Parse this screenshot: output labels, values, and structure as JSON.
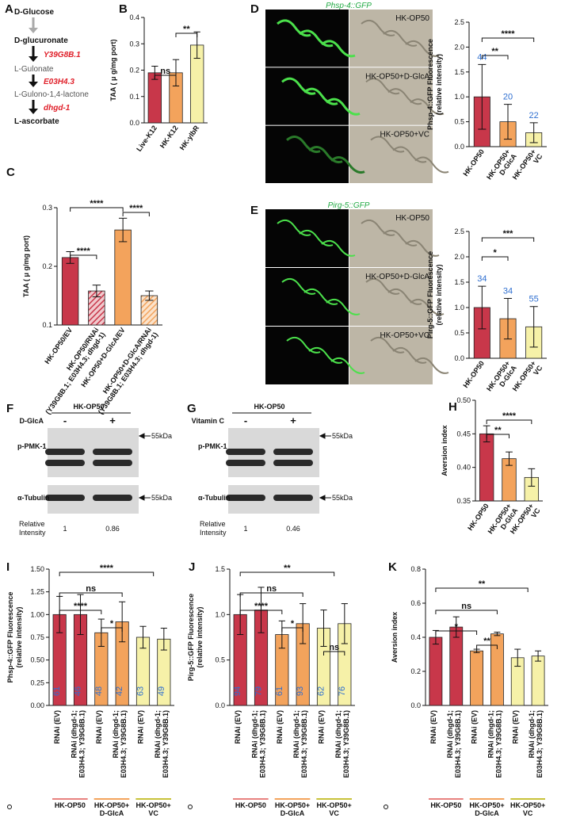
{
  "pathway": {
    "panel": "A",
    "compounds": [
      "D-Glucose",
      "D-glucuronate",
      "L-Gulonate",
      "L-Gulono-1,4-lactone",
      "L-ascorbate"
    ],
    "enzymes": [
      "Y39G8B.1",
      "E03H4.3",
      "dhgd-1"
    ]
  },
  "micrographs": [
    {
      "panel": "D",
      "title": "Phsp-4::GFP",
      "rows": [
        "HK-OP50",
        "HK-OP50+D-GlcA",
        "HK-OP50+VC"
      ]
    },
    {
      "panel": "E",
      "title": "Pirg-5::GFP",
      "rows": [
        "HK-OP50",
        "HK-OP50+D-GlcA",
        "HK-OP50+VC"
      ]
    }
  ],
  "blots": [
    {
      "panel": "F",
      "header": "HK-OP50",
      "treatment": "D-GlcA",
      "lanes": [
        "-",
        "+"
      ],
      "bands": [
        "p-PMK-1",
        "α-Tubulin"
      ],
      "marker": "55kDa",
      "intensity_label": [
        "Relative",
        "Intensity"
      ],
      "intensities": [
        1,
        0.86
      ]
    },
    {
      "panel": "G",
      "header": "HK-OP50",
      "treatment": "Vitamin C",
      "lanes": [
        "-",
        "+"
      ],
      "bands": [
        "p-PMK-1",
        "α-Tubulin"
      ],
      "marker": "55kDa",
      "intensity_label": [
        "Relative",
        "Intensity"
      ],
      "intensities": [
        1,
        0.46
      ]
    }
  ],
  "chart_data": [
    {
      "type": "bar",
      "panel": "B",
      "ylabel": [
        "TAA ( μ g/mg port)"
      ],
      "categories": [
        "Live-K12",
        "HK-K12",
        "HK-ylbR"
      ],
      "values": [
        0.19,
        0.19,
        0.295
      ],
      "errors": [
        0.025,
        0.05,
        0.05
      ],
      "colors": [
        "#c8374a",
        "#f3a35c",
        "#f6f1a8"
      ],
      "ylim": [
        0,
        0.4
      ],
      "yticks": [
        {
          "value": 0,
          "label": "0.0"
        },
        0.1,
        0.2,
        0.3,
        0.4
      ],
      "annotations": [
        "ns",
        "**"
      ]
    },
    {
      "type": "bar",
      "panel": "C",
      "ylabel": [
        "TAA ( μ g/mg port)"
      ],
      "categories": [
        [
          "HK-OP50/EV"
        ],
        [
          "HK-OP50/RNAi",
          "(Y39G8B.1; E03H4.3; dhgd-1)"
        ],
        [
          "HK-OP50+D-GlcA/EV"
        ],
        [
          "HK-OP50+D-GlcA/RNAi",
          "(Y39G8B.1; E03H4.3; dhgd-1)"
        ]
      ],
      "values": [
        0.215,
        0.158,
        0.262,
        0.15
      ],
      "errors": [
        0.01,
        0.01,
        0.02,
        0.008
      ],
      "colors": [
        "#c8374a",
        "#c8374a",
        "#f3a35c",
        "#f3a35c"
      ],
      "hatched": [
        false,
        true,
        false,
        true
      ],
      "ylim": [
        0.1,
        0.3
      ],
      "yticks": [
        0.1,
        0.2,
        0.3
      ],
      "annotations": [
        "****",
        "****",
        "****"
      ]
    },
    {
      "type": "bar",
      "panel": "D",
      "ylabel": [
        "Phsp-4::GFP Fluorescence",
        "(relative intensity)"
      ],
      "categories": [
        [
          "HK-OP50"
        ],
        [
          "HK-OP50+",
          "D-GlcA"
        ],
        [
          "HK-OP50+",
          "VC"
        ]
      ],
      "values": [
        1.0,
        0.5,
        0.28
      ],
      "errors": [
        0.65,
        0.35,
        0.2
      ],
      "colors": [
        "#c8374a",
        "#f3a35c",
        "#f6f1a8"
      ],
      "n_labels": [
        44,
        20,
        22
      ],
      "ylim": [
        0,
        2.5
      ],
      "yticks": [
        {
          "value": 0,
          "label": "0.0"
        },
        0.5,
        {
          "value": 1,
          "label": "1.0"
        },
        1.5,
        {
          "value": 2,
          "label": "2.0"
        },
        2.5
      ],
      "annotations": [
        "**",
        "****"
      ]
    },
    {
      "type": "bar",
      "panel": "E",
      "ylabel": [
        "Pirg-5::GFP Fluorescence",
        "(relative intensity)"
      ],
      "categories": [
        [
          "HK-OP50"
        ],
        [
          "HK-OP50+",
          "D-GlcA"
        ],
        [
          "HK-OP50+",
          "VC"
        ]
      ],
      "values": [
        1.0,
        0.78,
        0.62
      ],
      "errors": [
        0.42,
        0.4,
        0.4
      ],
      "colors": [
        "#c8374a",
        "#f3a35c",
        "#f6f1a8"
      ],
      "n_labels": [
        34,
        34,
        55
      ],
      "ylim": [
        0,
        2.5
      ],
      "yticks": [
        {
          "value": 0,
          "label": "0.0"
        },
        0.5,
        {
          "value": 1,
          "label": "1.0"
        },
        1.5,
        {
          "value": 2,
          "label": "2.0"
        },
        2.5
      ],
      "annotations": [
        "*",
        "***"
      ]
    },
    {
      "type": "bar",
      "panel": "H",
      "ylabel": [
        "Aversion index"
      ],
      "categories": [
        [
          "HK-OP50"
        ],
        [
          "HK-OP50+",
          "D-GlcA"
        ],
        [
          "HK-OP50+",
          "VC"
        ]
      ],
      "values": [
        0.45,
        0.413,
        0.385
      ],
      "errors": [
        0.012,
        0.01,
        0.013
      ],
      "colors": [
        "#c8374a",
        "#f3a35c",
        "#f6f1a8"
      ],
      "ylim": [
        0.35,
        0.5
      ],
      "yticks": [
        0.35,
        {
          "value": 0.4,
          "label": "0.40"
        },
        0.45,
        {
          "value": 0.5,
          "label": "0.50"
        }
      ],
      "annotations": [
        "**",
        "****"
      ]
    },
    {
      "type": "bar",
      "panel": "I",
      "ylabel": [
        "Phsp-4::GFP Fluorescence",
        "(relative intensity)"
      ],
      "categories": [
        [
          "RNAi (EV)"
        ],
        [
          "RNAi (dhgd-1;",
          "E03H4.3; Y39G8B.1)"
        ],
        [
          "RNAi (EV)"
        ],
        [
          "RNAi (dhgd-1;",
          "E03H4.3; Y39G8B.1)"
        ],
        [
          "RNAi (EV)"
        ],
        [
          "RNAi (dhgd-1;",
          "E03H4.3; Y39G8B.1)"
        ]
      ],
      "values": [
        1.0,
        1.0,
        0.8,
        0.92,
        0.75,
        0.73
      ],
      "errors": [
        0.2,
        0.22,
        0.15,
        0.22,
        0.12,
        0.12
      ],
      "colors": [
        "#c8374a",
        "#c8374a",
        "#f3a35c",
        "#f3a35c",
        "#f6f1a8",
        "#f6f1a8"
      ],
      "n_labels": [
        61,
        46,
        48,
        42,
        63,
        49
      ],
      "groups": [
        [
          "HK-OP50"
        ],
        [
          "HK-OP50+",
          "D-GlcA"
        ],
        [
          "HK-OP50+",
          "VC"
        ]
      ],
      "ylim": [
        0,
        1.5
      ],
      "yticks": [
        {
          "value": 0,
          "label": "0.00"
        },
        0.25,
        {
          "value": 0.5,
          "label": "0.50"
        },
        0.75,
        {
          "value": 1,
          "label": "1.00"
        },
        1.25,
        {
          "value": 1.5,
          "label": "1.50"
        }
      ],
      "annotations": [
        "****",
        "ns",
        "****",
        "*"
      ]
    },
    {
      "type": "bar",
      "panel": "J",
      "ylabel": [
        "Pirg-5::GFP Fluorescence",
        "(relative intensity)"
      ],
      "categories": [
        [
          "RNAi (EV)"
        ],
        [
          "RNAi (dhgd-1;",
          "E03H4.3; Y39G8B.1)"
        ],
        [
          "RNAi (EV)"
        ],
        [
          "RNAi (dhgd-1;",
          "E03H4.3; Y39G8B.1)"
        ],
        [
          "RNAi (EV)"
        ],
        [
          "RNAi (dhgd-1;",
          "E03H4.3; Y39G8B.1)"
        ]
      ],
      "values": [
        1.0,
        1.05,
        0.78,
        0.9,
        0.85,
        0.9
      ],
      "errors": [
        0.22,
        0.25,
        0.15,
        0.22,
        0.2,
        0.22
      ],
      "colors": [
        "#c8374a",
        "#c8374a",
        "#f3a35c",
        "#f3a35c",
        "#f6f1a8",
        "#f6f1a8"
      ],
      "n_labels": [
        94,
        79,
        61,
        93,
        62,
        76
      ],
      "groups": [
        [
          "HK-OP50"
        ],
        [
          "HK-OP50+",
          "D-GlcA"
        ],
        [
          "HK-OP50+",
          "VC"
        ]
      ],
      "ylim": [
        0,
        1.5
      ],
      "yticks": [
        {
          "value": 0,
          "label": "0.0"
        },
        0.5,
        {
          "value": 1,
          "label": "1.0"
        },
        1.5
      ],
      "annotations": [
        "**",
        "ns",
        "****",
        "*",
        "ns"
      ]
    },
    {
      "type": "bar",
      "panel": "K",
      "ylabel": [
        "Aversion index"
      ],
      "categories": [
        [
          "RNAi (EV)"
        ],
        [
          "RNAi (dhgd-1;",
          "E03H4.3; Y39G8B.1)"
        ],
        [
          "RNAi (EV)"
        ],
        [
          "RNAi (dhgd-1;",
          "E03H4.3; Y39G8B.1)"
        ],
        [
          "RNAi (EV)"
        ],
        [
          "RNAi (dhgd-1;",
          "E03H4.3; Y39G8B.1)"
        ]
      ],
      "values": [
        0.4,
        0.46,
        0.32,
        0.42,
        0.28,
        0.29
      ],
      "errors": [
        0.04,
        0.06,
        0.01,
        0.01,
        0.05,
        0.03
      ],
      "colors": [
        "#c8374a",
        "#c8374a",
        "#f3a35c",
        "#f3a35c",
        "#f6f1a8",
        "#f6f1a8"
      ],
      "groups": [
        [
          "HK-OP50"
        ],
        [
          "HK-OP50+",
          "D-GlcA"
        ],
        [
          "HK-OP50+",
          "VC"
        ]
      ],
      "ylim": [
        0,
        0.8
      ],
      "yticks": [
        {
          "value": 0,
          "label": "0.0"
        },
        0.2,
        0.4,
        0.6,
        0.8
      ],
      "annotations": [
        "**",
        "ns",
        "*",
        "**"
      ]
    }
  ]
}
